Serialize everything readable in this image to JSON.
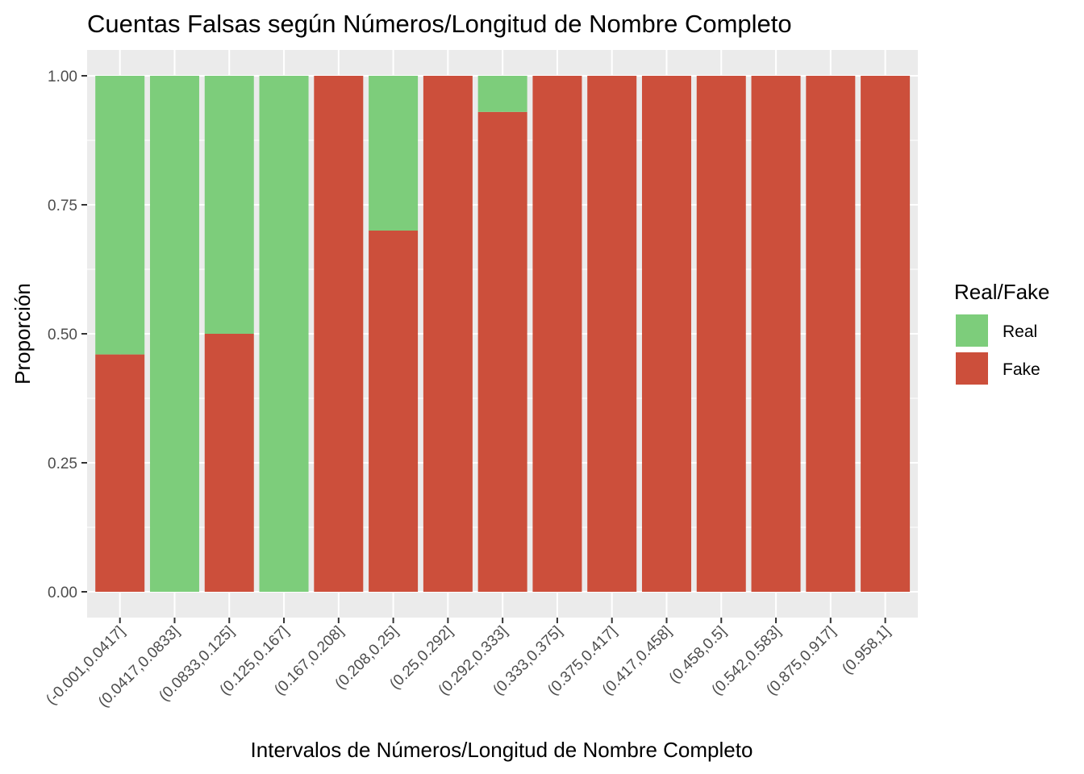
{
  "chart_data": {
    "type": "bar",
    "stacked": true,
    "title": "Cuentas Falsas según Números/Longitud de Nombre Completo",
    "xlabel": "Intervalos de Números/Longitud de Nombre Completo",
    "ylabel": "Proporción",
    "ylim": [
      0,
      1
    ],
    "yticks": [
      "0.00",
      "0.25",
      "0.50",
      "0.75",
      "1.00"
    ],
    "grid": true,
    "legend": {
      "title": "Real/Fake",
      "position": "right",
      "entries": [
        {
          "name": "Real",
          "color": "#7dcd7b"
        },
        {
          "name": "Fake",
          "color": "#cc4f3b"
        }
      ]
    },
    "categories": [
      "(-0.001,0.0417]",
      "(0.0417,0.0833]",
      "(0.0833,0.125]",
      "(0.125,0.167]",
      "(0.167,0.208]",
      "(0.208,0.25]",
      "(0.25,0.292]",
      "(0.292,0.333]",
      "(0.333,0.375]",
      "(0.375,0.417]",
      "(0.417,0.458]",
      "(0.458,0.5]",
      "(0.542,0.583]",
      "(0.875,0.917]",
      "(0.958,1]"
    ],
    "series": [
      {
        "name": "Fake",
        "color": "#cc4f3b",
        "values": [
          0.46,
          0.0,
          0.5,
          0.0,
          1.0,
          0.7,
          1.0,
          0.93,
          1.0,
          1.0,
          1.0,
          1.0,
          1.0,
          1.0,
          1.0
        ]
      },
      {
        "name": "Real",
        "color": "#7dcd7b",
        "values": [
          0.54,
          1.0,
          0.5,
          1.0,
          0.0,
          0.3,
          0.0,
          0.07,
          0.0,
          0.0,
          0.0,
          0.0,
          0.0,
          0.0,
          0.0
        ]
      }
    ]
  }
}
